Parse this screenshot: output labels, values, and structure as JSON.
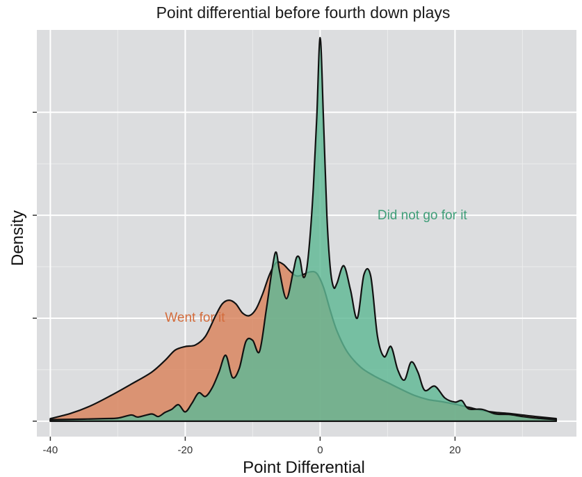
{
  "chart_data": {
    "type": "area",
    "title": "Point differential before fourth down plays",
    "xlabel": "Point Differential",
    "ylabel": "Density",
    "xlim": [
      -42,
      38
    ],
    "ylim": [
      -0.003,
      0.076
    ],
    "x_ticks": [
      -40,
      -20,
      0,
      20
    ],
    "x_tick_labels": [
      "-40",
      "-20",
      "0",
      "20"
    ],
    "x_minor": [
      -30,
      -10,
      10,
      30
    ],
    "y_ticks": [
      0,
      0.02,
      0.04,
      0.06
    ],
    "y_tick_labels": [
      "",
      "",
      "",
      ""
    ],
    "grid": true,
    "panel_color": "#dcdddf",
    "series": [
      {
        "name": "Went for it",
        "color": "#d9825b",
        "label_color": "#d36b3b",
        "points": [
          [
            -40,
            0.0005
          ],
          [
            -37,
            0.0015
          ],
          [
            -34,
            0.003
          ],
          [
            -31,
            0.005
          ],
          [
            -28,
            0.0072
          ],
          [
            -25,
            0.0095
          ],
          [
            -23,
            0.0118
          ],
          [
            -21.5,
            0.0138
          ],
          [
            -20,
            0.0145
          ],
          [
            -18.5,
            0.0148
          ],
          [
            -17,
            0.0165
          ],
          [
            -15.5,
            0.0205
          ],
          [
            -14.5,
            0.0228
          ],
          [
            -13.5,
            0.0235
          ],
          [
            -12.5,
            0.0228
          ],
          [
            -11.5,
            0.021
          ],
          [
            -10.5,
            0.0205
          ],
          [
            -9.5,
            0.0218
          ],
          [
            -8.5,
            0.0248
          ],
          [
            -7.5,
            0.0285
          ],
          [
            -6.5,
            0.0308
          ],
          [
            -5.5,
            0.0305
          ],
          [
            -4.5,
            0.0292
          ],
          [
            -3.5,
            0.0282
          ],
          [
            -2.5,
            0.0285
          ],
          [
            -1.5,
            0.029
          ],
          [
            -0.5,
            0.0287
          ],
          [
            0.5,
            0.026
          ],
          [
            1.5,
            0.0215
          ],
          [
            2.5,
            0.0175
          ],
          [
            4,
            0.0135
          ],
          [
            6,
            0.0105
          ],
          [
            8,
            0.0088
          ],
          [
            10,
            0.0075
          ],
          [
            12,
            0.0062
          ],
          [
            14,
            0.005
          ],
          [
            16,
            0.0042
          ],
          [
            18,
            0.0038
          ],
          [
            20,
            0.0033
          ],
          [
            22,
            0.0027
          ],
          [
            24,
            0.0021
          ],
          [
            26,
            0.0017
          ],
          [
            28,
            0.0015
          ],
          [
            30,
            0.0012
          ],
          [
            32,
            0.0009
          ],
          [
            35,
            0.0005
          ]
        ]
      },
      {
        "name": "Did not go for it",
        "color": "#5fb895",
        "label_color": "#3f9e78",
        "points": [
          [
            -40,
            0.0003
          ],
          [
            -35,
            0.0004
          ],
          [
            -32,
            0.0005
          ],
          [
            -30,
            0.0006
          ],
          [
            -28,
            0.0012
          ],
          [
            -27,
            0.0008
          ],
          [
            -25,
            0.0014
          ],
          [
            -24,
            0.0009
          ],
          [
            -23,
            0.0017
          ],
          [
            -22,
            0.0023
          ],
          [
            -21,
            0.0032
          ],
          [
            -20,
            0.0018
          ],
          [
            -19,
            0.0035
          ],
          [
            -18,
            0.0055
          ],
          [
            -17,
            0.0048
          ],
          [
            -16,
            0.0065
          ],
          [
            -15,
            0.0095
          ],
          [
            -14,
            0.0128
          ],
          [
            -13,
            0.0085
          ],
          [
            -12,
            0.0102
          ],
          [
            -11,
            0.0155
          ],
          [
            -10,
            0.0157
          ],
          [
            -9,
            0.0135
          ],
          [
            -8,
            0.0215
          ],
          [
            -7,
            0.0305
          ],
          [
            -6.5,
            0.0328
          ],
          [
            -6,
            0.029
          ],
          [
            -5,
            0.0238
          ],
          [
            -4,
            0.029
          ],
          [
            -3.5,
            0.0318
          ],
          [
            -3,
            0.0315
          ],
          [
            -2.5,
            0.028
          ],
          [
            -2,
            0.0295
          ],
          [
            -1.5,
            0.0358
          ],
          [
            -1,
            0.0455
          ],
          [
            -0.5,
            0.059
          ],
          [
            0,
            0.0745
          ],
          [
            0.5,
            0.0585
          ],
          [
            1,
            0.04
          ],
          [
            1.5,
            0.0298
          ],
          [
            2,
            0.026
          ],
          [
            2.5,
            0.0268
          ],
          [
            3.5,
            0.0302
          ],
          [
            4.5,
            0.0255
          ],
          [
            5.5,
            0.02
          ],
          [
            6.5,
            0.0285
          ],
          [
            7.5,
            0.0282
          ],
          [
            8.5,
            0.0165
          ],
          [
            9.5,
            0.0125
          ],
          [
            10.5,
            0.0145
          ],
          [
            11.5,
            0.01
          ],
          [
            12.5,
            0.008
          ],
          [
            13.5,
            0.0115
          ],
          [
            14.5,
            0.0095
          ],
          [
            15.5,
            0.006
          ],
          [
            17,
            0.0068
          ],
          [
            18.5,
            0.0045
          ],
          [
            20,
            0.0037
          ],
          [
            21,
            0.004
          ],
          [
            22,
            0.0024
          ],
          [
            24,
            0.0023
          ],
          [
            26,
            0.0014
          ],
          [
            28,
            0.0013
          ],
          [
            30,
            0.0009
          ],
          [
            32,
            0.0006
          ],
          [
            35,
            0.0003
          ]
        ]
      }
    ],
    "annotations": [
      {
        "text": "Went for it",
        "x": -23,
        "y": 0.0193,
        "color": "#d36b3b"
      },
      {
        "text": "Did not go for it",
        "x": 8.5,
        "y": 0.0392,
        "color": "#3f9e78"
      }
    ]
  }
}
